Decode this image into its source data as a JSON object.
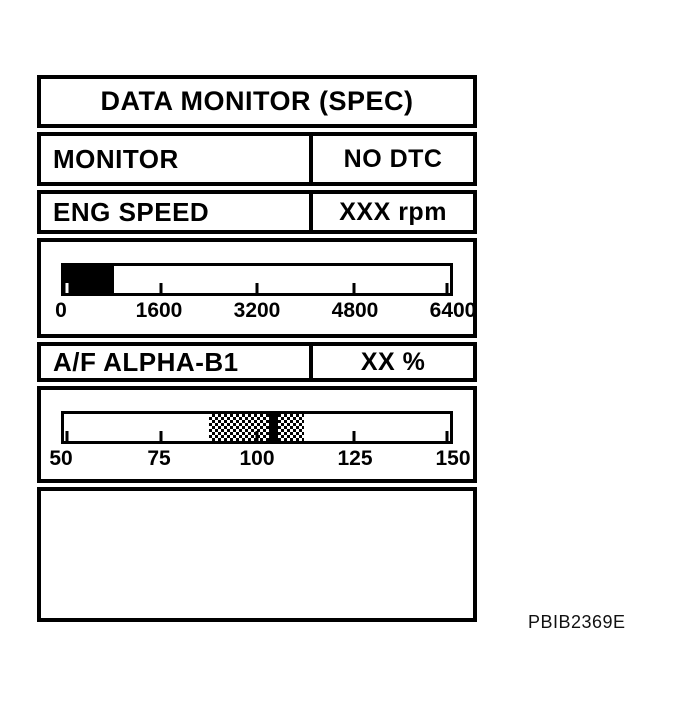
{
  "screen": {
    "title": "DATA MONITOR (SPEC)",
    "rows": [
      {
        "label": "MONITOR",
        "value": "NO DTC"
      },
      {
        "label": "ENG SPEED",
        "value": "XXX rpm"
      },
      {
        "label": "A/F ALPHA-B1",
        "value": "XX %"
      }
    ]
  },
  "gauges": {
    "eng_speed": {
      "min": 0,
      "max": 6400,
      "ticks": [
        "0",
        "1600",
        "3200",
        "4800",
        "6400"
      ],
      "fill_value": 800,
      "fill_width": "13%"
    },
    "af_alpha": {
      "min": 50,
      "max": 150,
      "ticks": [
        "50",
        "75",
        "100",
        "125",
        "150"
      ],
      "spec_band": [
        87,
        112
      ],
      "marker_value": 104,
      "band_left": "37.5%",
      "band_width": "24.7%",
      "marker_left": "53%",
      "marker_width": "2.4%"
    }
  },
  "colors": {
    "ink": "#000000",
    "paper": "#ffffff"
  },
  "figure_code": "PBIB2369E",
  "chart_data": [
    {
      "type": "bar",
      "title": "ENG SPEED gauge",
      "orientation": "horizontal",
      "range": [
        0,
        6400
      ],
      "tick_labels": [
        "0",
        "1600",
        "3200",
        "4800",
        "6400"
      ],
      "fill_from": 0,
      "fill_to": 800,
      "unit": "rpm",
      "grid": false
    },
    {
      "type": "bar",
      "title": "A/F ALPHA-B1 gauge",
      "orientation": "horizontal",
      "range": [
        50,
        150
      ],
      "tick_labels": [
        "50",
        "75",
        "100",
        "125",
        "150"
      ],
      "spec_band": [
        87,
        112
      ],
      "marker": 104,
      "unit": "%",
      "grid": false
    }
  ]
}
